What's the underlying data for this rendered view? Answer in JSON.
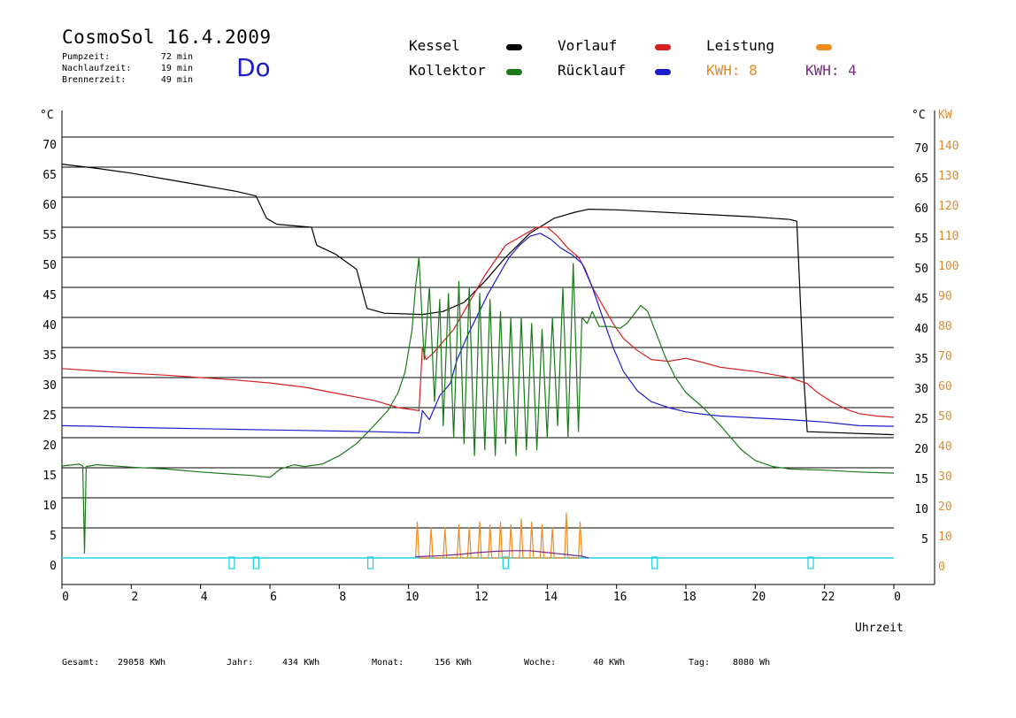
{
  "header": {
    "title": "CosmoSol 16.4.2009",
    "day": "Do",
    "stats": [
      {
        "label": "Pumpzeit:",
        "value": "72 min"
      },
      {
        "label": "Nachlaufzeit:",
        "value": "19 min"
      },
      {
        "label": "Brennerzeit:",
        "value": "49 min"
      }
    ]
  },
  "legend": {
    "kessel": {
      "label": "Kessel",
      "color": "#000000"
    },
    "kollektor": {
      "label": "Kollektor",
      "color": "#1a7a1a"
    },
    "vorlauf": {
      "label": "Vorlauf",
      "color": "#d42020"
    },
    "ruecklauf": {
      "label": "Rücklauf",
      "color": "#1e1ec8"
    },
    "leistung": {
      "label": "Leistung",
      "color": "#f08c1e"
    },
    "kwh1": {
      "label": "KWH: 8",
      "color": "#e08a2a"
    },
    "kwh2": {
      "label": "KWH: 4",
      "color": "#7a2a8a"
    }
  },
  "footer": {
    "gesamt_label": "Gesamt:",
    "gesamt_value": "29058 KWh",
    "jahr_label": "Jahr:",
    "jahr_value": "434 KWh",
    "monat_label": "Monat:",
    "monat_value": "156 KWh",
    "woche_label": "Woche:",
    "woche_value": "40 KWh",
    "tag_label": "Tag:",
    "tag_value": "8080 Wh"
  },
  "chart_data": {
    "type": "line",
    "xlabel": "Uhrzeit",
    "ylabel_left": "°C",
    "ylabel_right_unit1": "°C",
    "ylabel_right_unit2": "KW",
    "xlim": [
      0,
      24
    ],
    "ylim": [
      0,
      70
    ],
    "grid": true,
    "x_ticks": [
      "0",
      "2",
      "4",
      "6",
      "8",
      "10",
      "12",
      "14",
      "16",
      "18",
      "20",
      "22",
      "0"
    ],
    "y_ticks_left": [
      "0",
      "5",
      "10",
      "15",
      "20",
      "25",
      "30",
      "35",
      "40",
      "45",
      "50",
      "55",
      "60",
      "65",
      "70"
    ],
    "y_ticks_right_c": [
      "5",
      "10",
      "15",
      "20",
      "25",
      "30",
      "35",
      "40",
      "45",
      "50",
      "55",
      "60",
      "65",
      "70"
    ],
    "y_ticks_right_kw": [
      "0",
      "10",
      "20",
      "30",
      "40",
      "50",
      "60",
      "70",
      "80",
      "90",
      "100",
      "110",
      "120",
      "130",
      "140"
    ],
    "series": [
      {
        "name": "Kessel",
        "color": "#000000",
        "points": [
          [
            0,
            65.5
          ],
          [
            1,
            64.8
          ],
          [
            2,
            64
          ],
          [
            3,
            63
          ],
          [
            4,
            62
          ],
          [
            5,
            61
          ],
          [
            5.6,
            60.2
          ],
          [
            5.9,
            56.5
          ],
          [
            6.2,
            55.5
          ],
          [
            7.2,
            55
          ],
          [
            7.35,
            52
          ],
          [
            7.9,
            50.5
          ],
          [
            8.5,
            48
          ],
          [
            8.8,
            41.5
          ],
          [
            9.3,
            40.7
          ],
          [
            10.4,
            40.5
          ],
          [
            11,
            41
          ],
          [
            11.6,
            42.5
          ],
          [
            12.2,
            46
          ],
          [
            12.8,
            50
          ],
          [
            13.5,
            54
          ],
          [
            14.2,
            56.5
          ],
          [
            14.8,
            57.5
          ],
          [
            15.2,
            58
          ],
          [
            16,
            57.9
          ],
          [
            17,
            57.6
          ],
          [
            18,
            57.3
          ],
          [
            19,
            57
          ],
          [
            20,
            56.7
          ],
          [
            20.5,
            56.5
          ],
          [
            21,
            56.3
          ],
          [
            21.2,
            56
          ],
          [
            21.4,
            30
          ],
          [
            21.5,
            21
          ],
          [
            24,
            20.5
          ]
        ]
      },
      {
        "name": "Vorlauf",
        "color": "#d42020",
        "points": [
          [
            0,
            31.5
          ],
          [
            1,
            31.1
          ],
          [
            2,
            30.7
          ],
          [
            3,
            30.4
          ],
          [
            4,
            30
          ],
          [
            5,
            29.6
          ],
          [
            6,
            29.1
          ],
          [
            7,
            28.4
          ],
          [
            8,
            27.3
          ],
          [
            9,
            26.2
          ],
          [
            9.7,
            25
          ],
          [
            10.3,
            24.5
          ],
          [
            10.4,
            35
          ],
          [
            10.5,
            33
          ],
          [
            10.7,
            34
          ],
          [
            11,
            36
          ],
          [
            11.3,
            38
          ],
          [
            11.6,
            41
          ],
          [
            11.9,
            44
          ],
          [
            12.2,
            47
          ],
          [
            12.5,
            49.5
          ],
          [
            12.8,
            52
          ],
          [
            13.1,
            53
          ],
          [
            13.4,
            54
          ],
          [
            13.7,
            55
          ],
          [
            14,
            55
          ],
          [
            14.3,
            53.5
          ],
          [
            14.6,
            51.5
          ],
          [
            14.9,
            50
          ],
          [
            15.1,
            48
          ],
          [
            15.3,
            45
          ],
          [
            15.6,
            42
          ],
          [
            15.9,
            39
          ],
          [
            16.2,
            36.5
          ],
          [
            16.6,
            34.5
          ],
          [
            17,
            33
          ],
          [
            17.5,
            32.7
          ],
          [
            18,
            33.2
          ],
          [
            18.5,
            32.5
          ],
          [
            19,
            31.7
          ],
          [
            20,
            31
          ],
          [
            21,
            30
          ],
          [
            21.5,
            29
          ],
          [
            21.8,
            27.5
          ],
          [
            22.2,
            26
          ],
          [
            22.6,
            24.8
          ],
          [
            23,
            24
          ],
          [
            23.5,
            23.6
          ],
          [
            24,
            23.4
          ]
        ]
      },
      {
        "name": "Rücklauf",
        "color": "#1e1ec8",
        "points": [
          [
            0,
            22
          ],
          [
            1,
            21.9
          ],
          [
            2,
            21.7
          ],
          [
            3,
            21.6
          ],
          [
            4,
            21.5
          ],
          [
            5,
            21.4
          ],
          [
            6,
            21.3
          ],
          [
            7,
            21.2
          ],
          [
            8,
            21.1
          ],
          [
            9,
            21
          ],
          [
            10.3,
            20.8
          ],
          [
            10.4,
            24.5
          ],
          [
            10.6,
            23
          ],
          [
            10.9,
            27
          ],
          [
            11.2,
            29
          ],
          [
            11.4,
            33
          ],
          [
            11.7,
            37
          ],
          [
            12,
            40.5
          ],
          [
            12.3,
            44
          ],
          [
            12.6,
            47
          ],
          [
            12.9,
            50
          ],
          [
            13.2,
            52
          ],
          [
            13.5,
            53.5
          ],
          [
            13.8,
            54
          ],
          [
            14.1,
            53
          ],
          [
            14.4,
            51.5
          ],
          [
            14.7,
            50.5
          ],
          [
            15,
            49
          ],
          [
            15.3,
            45
          ],
          [
            15.6,
            40
          ],
          [
            15.9,
            35
          ],
          [
            16.2,
            31
          ],
          [
            16.6,
            27.8
          ],
          [
            17,
            26
          ],
          [
            17.5,
            25
          ],
          [
            18,
            24.3
          ],
          [
            18.5,
            23.9
          ],
          [
            19,
            23.6
          ],
          [
            20,
            23.3
          ],
          [
            21,
            23
          ],
          [
            21.5,
            22.8
          ],
          [
            22,
            22.6
          ],
          [
            22.5,
            22.3
          ],
          [
            23,
            22
          ],
          [
            24,
            21.9
          ]
        ]
      },
      {
        "name": "Kollektor",
        "color": "#1a7a1a",
        "points": [
          [
            0,
            15.3
          ],
          [
            0.5,
            15.6
          ],
          [
            0.6,
            15.3
          ],
          [
            0.65,
            0.8
          ],
          [
            0.7,
            15.2
          ],
          [
            1,
            15.5
          ],
          [
            2,
            15.1
          ],
          [
            3,
            14.8
          ],
          [
            4,
            14.3
          ],
          [
            5,
            13.9
          ],
          [
            5.5,
            13.7
          ],
          [
            6,
            13.4
          ],
          [
            6.3,
            14.8
          ],
          [
            6.7,
            15.5
          ],
          [
            7,
            15.2
          ],
          [
            7.5,
            15.6
          ],
          [
            8,
            17
          ],
          [
            8.5,
            19
          ],
          [
            9,
            22
          ],
          [
            9.4,
            24.5
          ],
          [
            9.7,
            27.5
          ],
          [
            9.9,
            31
          ],
          [
            10.1,
            38
          ],
          [
            10.2,
            45
          ],
          [
            10.3,
            50
          ],
          [
            10.45,
            33
          ],
          [
            10.6,
            45
          ],
          [
            10.75,
            26
          ],
          [
            10.9,
            43
          ],
          [
            11,
            22
          ],
          [
            11.15,
            44
          ],
          [
            11.3,
            20
          ],
          [
            11.45,
            46
          ],
          [
            11.6,
            19
          ],
          [
            11.75,
            45
          ],
          [
            11.9,
            17
          ],
          [
            12.05,
            44
          ],
          [
            12.2,
            18
          ],
          [
            12.35,
            43
          ],
          [
            12.5,
            17
          ],
          [
            12.65,
            41
          ],
          [
            12.8,
            19
          ],
          [
            12.95,
            40
          ],
          [
            13.1,
            17
          ],
          [
            13.25,
            40
          ],
          [
            13.4,
            18
          ],
          [
            13.55,
            39
          ],
          [
            13.7,
            18
          ],
          [
            13.85,
            38
          ],
          [
            14,
            20
          ],
          [
            14.15,
            40
          ],
          [
            14.3,
            22
          ],
          [
            14.45,
            45
          ],
          [
            14.6,
            20
          ],
          [
            14.75,
            49
          ],
          [
            14.9,
            21
          ],
          [
            15,
            40
          ],
          [
            15.15,
            39
          ],
          [
            15.3,
            41
          ],
          [
            15.5,
            38.5
          ],
          [
            15.8,
            38.5
          ],
          [
            16.1,
            38.2
          ],
          [
            16.3,
            39
          ],
          [
            16.5,
            40.5
          ],
          [
            16.7,
            42
          ],
          [
            16.9,
            41
          ],
          [
            17.1,
            38
          ],
          [
            17.4,
            33.5
          ],
          [
            17.7,
            30
          ],
          [
            18,
            27.5
          ],
          [
            18.5,
            25
          ],
          [
            19,
            22
          ],
          [
            19.3,
            20
          ],
          [
            19.6,
            18
          ],
          [
            20,
            16.2
          ],
          [
            20.5,
            15.2
          ],
          [
            21,
            14.8
          ],
          [
            22,
            14.6
          ],
          [
            23,
            14.3
          ],
          [
            24,
            14.1
          ]
        ]
      },
      {
        "name": "Leistung",
        "color": "#f08c1e",
        "points": [
          [
            10.2,
            0
          ],
          [
            10.25,
            6
          ],
          [
            10.3,
            0
          ],
          [
            10.6,
            0
          ],
          [
            10.65,
            5
          ],
          [
            10.7,
            0
          ],
          [
            11,
            0
          ],
          [
            11.05,
            5
          ],
          [
            11.1,
            0
          ],
          [
            11.4,
            0
          ],
          [
            11.45,
            5.5
          ],
          [
            11.5,
            0
          ],
          [
            11.7,
            0
          ],
          [
            11.75,
            5
          ],
          [
            11.8,
            0
          ],
          [
            12,
            0
          ],
          [
            12.05,
            6
          ],
          [
            12.1,
            0
          ],
          [
            12.3,
            0
          ],
          [
            12.35,
            5.5
          ],
          [
            12.4,
            0
          ],
          [
            12.6,
            0
          ],
          [
            12.65,
            6
          ],
          [
            12.7,
            0
          ],
          [
            12.9,
            0
          ],
          [
            12.95,
            5.5
          ],
          [
            13,
            0
          ],
          [
            13.2,
            0
          ],
          [
            13.25,
            6.5
          ],
          [
            13.3,
            0
          ],
          [
            13.5,
            0
          ],
          [
            13.55,
            6
          ],
          [
            13.6,
            0
          ],
          [
            13.8,
            0
          ],
          [
            13.85,
            5.5
          ],
          [
            13.9,
            0
          ],
          [
            14.1,
            0
          ],
          [
            14.15,
            5
          ],
          [
            14.2,
            0
          ],
          [
            14.5,
            0
          ],
          [
            14.55,
            7.5
          ],
          [
            14.6,
            0
          ],
          [
            14.9,
            0
          ],
          [
            14.95,
            6
          ],
          [
            15,
            0
          ]
        ]
      },
      {
        "name": "KWH",
        "color": "#7a2a8a",
        "points": [
          [
            10.2,
            0.2
          ],
          [
            11,
            0.4
          ],
          [
            11.5,
            0.6
          ],
          [
            12,
            0.9
          ],
          [
            12.5,
            1.1
          ],
          [
            13,
            1.2
          ],
          [
            13.5,
            1.2
          ],
          [
            14,
            0.9
          ],
          [
            14.5,
            0.6
          ],
          [
            15,
            0.3
          ],
          [
            15.2,
            0
          ]
        ]
      }
    ],
    "pump_markers_x": [
      4.9,
      5.6,
      8.9,
      12.8,
      17.1,
      21.6
    ]
  }
}
